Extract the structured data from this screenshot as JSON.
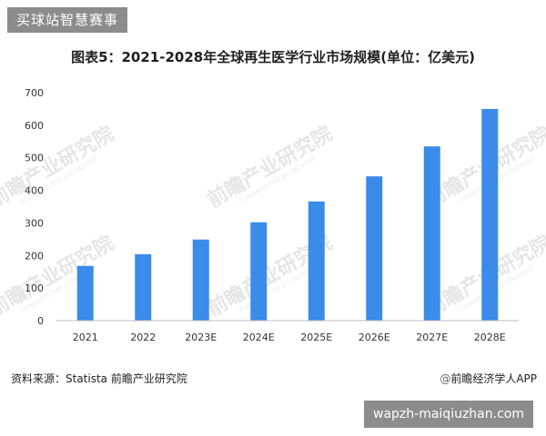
{
  "header": {
    "tag": "买球站智慧赛事"
  },
  "chart_data": {
    "type": "bar",
    "title": "图表5：2021-2028年全球再生医学行业市场规模(单位：亿美元)",
    "categories": [
      "2021",
      "2022",
      "2023E",
      "2024E",
      "2025E",
      "2026E",
      "2027E",
      "2028E"
    ],
    "values": [
      168,
      204,
      249,
      302,
      366,
      443,
      535,
      650
    ],
    "ylim": [
      0,
      700
    ],
    "yticks": [
      0,
      100,
      200,
      300,
      400,
      500,
      600,
      700
    ],
    "xlabel": "",
    "ylabel": "",
    "grid": false,
    "bar_color": "#3b8beb"
  },
  "footer": {
    "source": "资料来源：Statista 前瞻产业研究院",
    "brand_at": "@",
    "brand": "前瞻经济学人APP",
    "url": "wapzh-maiqiuzhan.com"
  },
  "watermark": {
    "text": "前瞻产业研究院",
    "sub": "FORWARD THE ECONOMIST"
  }
}
